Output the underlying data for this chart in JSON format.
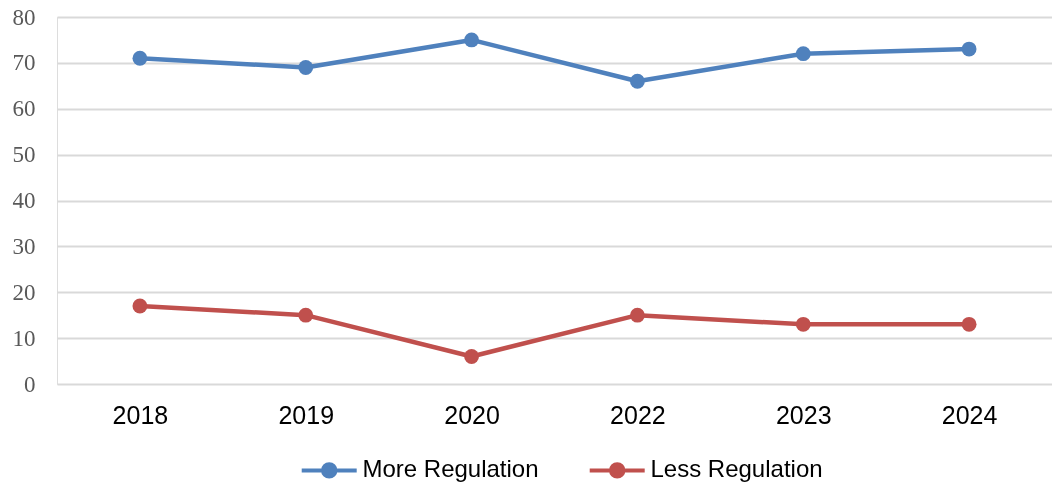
{
  "chart_data": {
    "type": "line",
    "categories": [
      "2018",
      "2019",
      "2020",
      "2022",
      "2023",
      "2024"
    ],
    "series": [
      {
        "name": "More Regulation",
        "color": "#4f81bd",
        "values": [
          71,
          69,
          75,
          66,
          72,
          73
        ]
      },
      {
        "name": "Less Regulation",
        "color": "#c0504d",
        "values": [
          17,
          15,
          6,
          15,
          13,
          13
        ]
      }
    ],
    "ylim": [
      0,
      80
    ],
    "yticks": [
      0,
      10,
      20,
      30,
      40,
      50,
      60,
      70,
      80
    ],
    "grid": "y",
    "legend": "bottom",
    "marker": "circle",
    "line_style": "solid"
  }
}
